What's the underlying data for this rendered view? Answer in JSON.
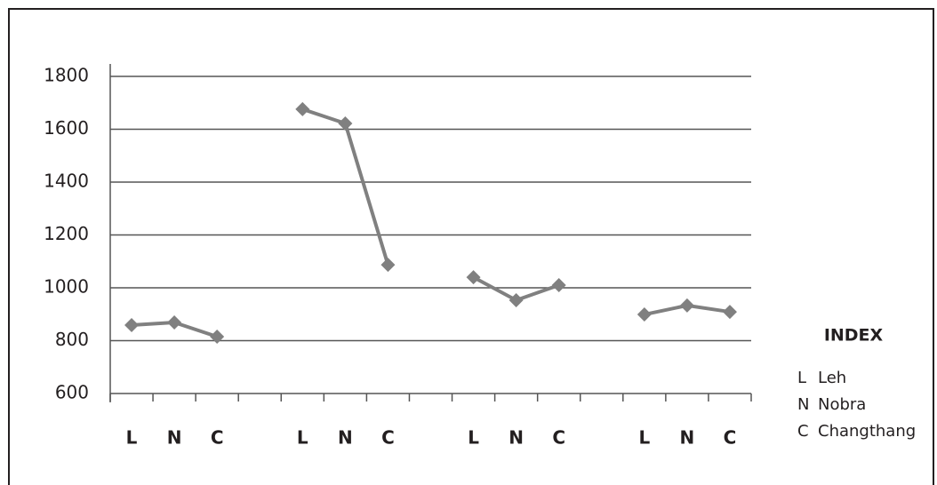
{
  "chart_data": {
    "type": "line",
    "categories": [
      "L",
      "N",
      "C",
      null,
      "L",
      "N",
      "C",
      null,
      "L",
      "N",
      "C",
      null,
      "L",
      "N",
      "C"
    ],
    "series": [
      {
        "color": "#808080",
        "values": [
          859,
          869,
          815,
          null,
          1676,
          1622,
          1087,
          null,
          1040,
          953,
          1010,
          null,
          899,
          933,
          909
        ]
      }
    ],
    "ylim": [
      600,
      1800
    ],
    "yticks": [
      600,
      800,
      1000,
      1200,
      1400,
      1600,
      1800
    ],
    "grid": true,
    "index": {
      "title": "INDEX",
      "items": [
        {
          "key": "L",
          "label": "Leh"
        },
        {
          "key": "N",
          "label": "Nobra"
        },
        {
          "key": "C",
          "label": "Changthang"
        }
      ]
    }
  }
}
